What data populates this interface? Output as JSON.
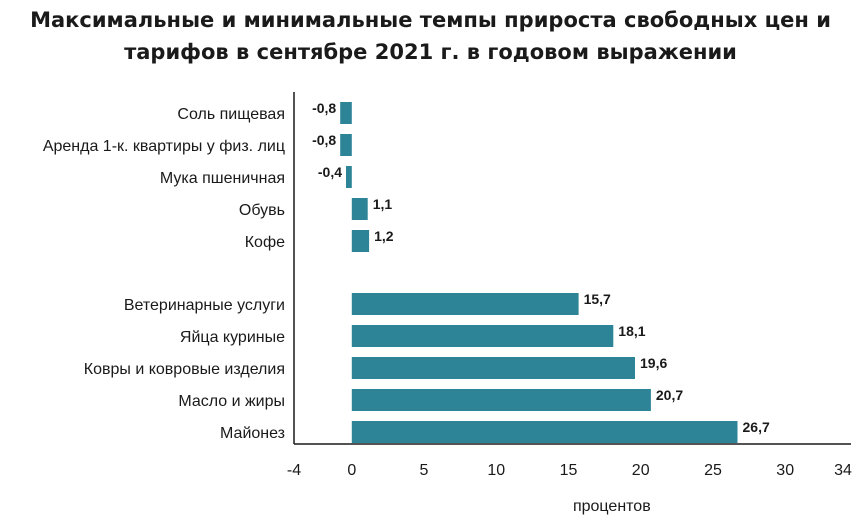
{
  "chart_data": {
    "type": "bar",
    "orientation": "horizontal",
    "title_lines": [
      "Максимальные и минимальные темпы прироста свободных цен и",
      "тарифов в сентябре 2021 г. в годовом выражении"
    ],
    "xlabel": "процентов",
    "xlim": [
      -4,
      34
    ],
    "xticks": [
      "-4",
      "0",
      "5",
      "10",
      "15",
      "20",
      "25",
      "30",
      "34"
    ],
    "color": "#2e8497",
    "groups": [
      {
        "categories": [
          "Соль пищевая",
          "Аренда 1-к. квартиры у физ. лиц",
          "Мука пшеничная",
          "Обувь",
          "Кофе"
        ],
        "values": [
          -0.8,
          -0.8,
          -0.4,
          1.1,
          1.2
        ],
        "labels": [
          "-0,8",
          "-0,8",
          "-0,4",
          "1,1",
          "1,2"
        ]
      },
      {
        "categories": [
          "Ветеринарные услуги",
          "Яйца куриные",
          "Ковры и ковровые изделия",
          "Масло и жиры",
          "Майонез"
        ],
        "values": [
          15.7,
          18.1,
          19.6,
          20.7,
          26.7
        ],
        "labels": [
          "15,7",
          "18,1",
          "19,6",
          "20,7",
          "26,7"
        ]
      }
    ]
  }
}
